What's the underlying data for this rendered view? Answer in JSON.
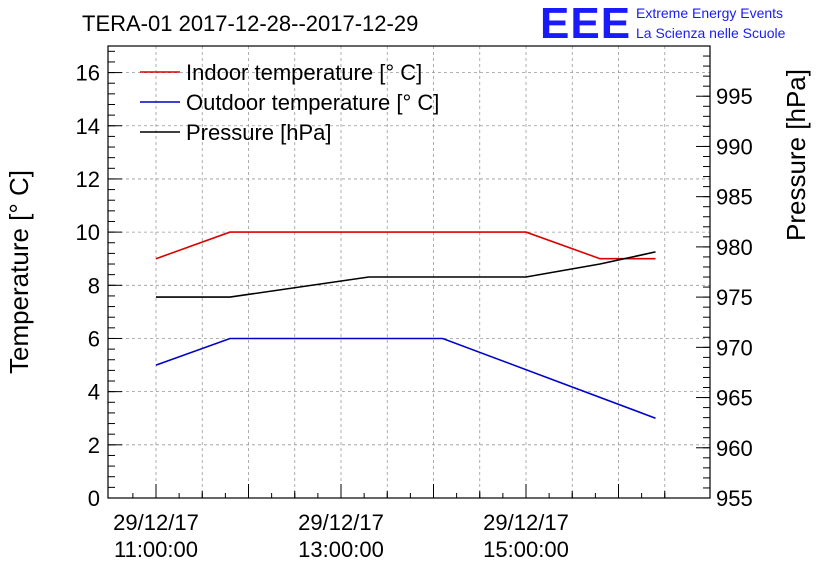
{
  "chart_data": {
    "type": "line",
    "title": "TERA-01 2017-12-28--2017-12-29",
    "ylabel": "Temperature [° C]",
    "y2label": "Pressure [hPa]",
    "ylim": [
      0,
      17
    ],
    "y2lim": [
      955,
      1000
    ],
    "y_ticks": [
      "0",
      "2",
      "4",
      "6",
      "8",
      "10",
      "12",
      "14",
      "16"
    ],
    "y2_ticks": [
      "955",
      "960",
      "965",
      "970",
      "975",
      "980",
      "985",
      "990",
      "995"
    ],
    "x_ticks": [
      {
        "date": "29/12/17",
        "time": "11:00:00"
      },
      {
        "date": "29/12/17",
        "time": "13:00:00"
      },
      {
        "date": "29/12/17",
        "time": "15:00:00"
      }
    ],
    "series": [
      {
        "name": "Indoor temperature [° C]",
        "axis": "left",
        "color": "#dd0000",
        "x_hours": [
          11.0,
          11.8,
          15.0,
          15.8,
          16.0,
          16.4
        ],
        "values": [
          9,
          10,
          10,
          9,
          9,
          9
        ]
      },
      {
        "name": "Outdoor temperature [° C]",
        "axis": "left",
        "color": "#0000cc",
        "x_hours": [
          11.0,
          11.8,
          14.1,
          16.4
        ],
        "values": [
          5,
          6,
          6,
          3
        ]
      },
      {
        "name": "Pressure [hPa]",
        "axis": "right",
        "color": "#000000",
        "x_hours": [
          11.0,
          11.8,
          13.3,
          15.0,
          15.8,
          16.4
        ],
        "values": [
          975,
          975,
          977,
          977,
          978.3,
          979.5
        ]
      }
    ]
  },
  "logo": {
    "mark": "EEE",
    "line1": "Extreme Energy Events",
    "line2": "La Scienza nelle Scuole"
  }
}
